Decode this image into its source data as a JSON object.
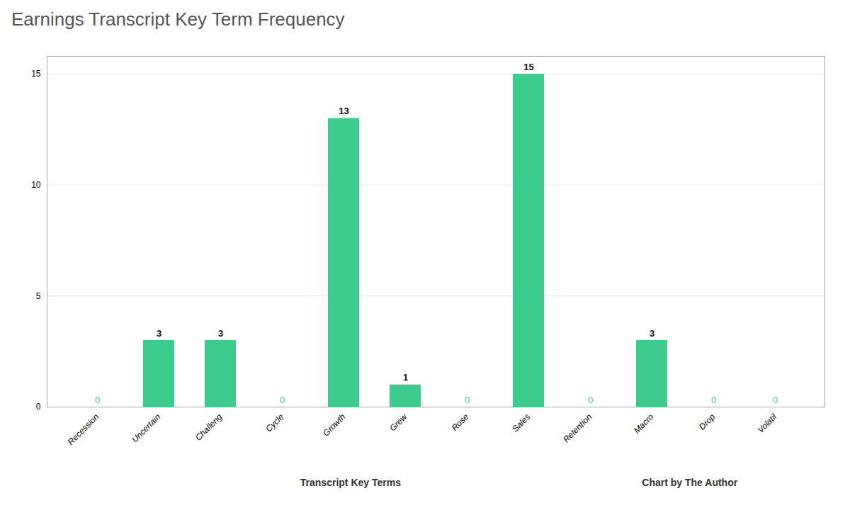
{
  "chart_data": {
    "type": "bar",
    "title": "Earnings Transcript Key Term Frequency",
    "categories": [
      "Recession",
      "Uncertain",
      "Challeng",
      "Cycle",
      "Growth",
      "Grew",
      "Rose",
      "Sales",
      "Retention",
      "Macro",
      "Drop",
      "Volatil"
    ],
    "values": [
      0,
      3,
      3,
      0,
      13,
      1,
      0,
      15,
      0,
      3,
      0,
      0
    ],
    "color": "#3dcc8e",
    "xlabel": "Transcript Key Terms",
    "annotations": [
      "Chart by The Author"
    ],
    "ylim": [
      0,
      15.8
    ],
    "yticks": [
      0,
      5,
      10,
      15
    ],
    "grid": true,
    "data_labels": true
  }
}
